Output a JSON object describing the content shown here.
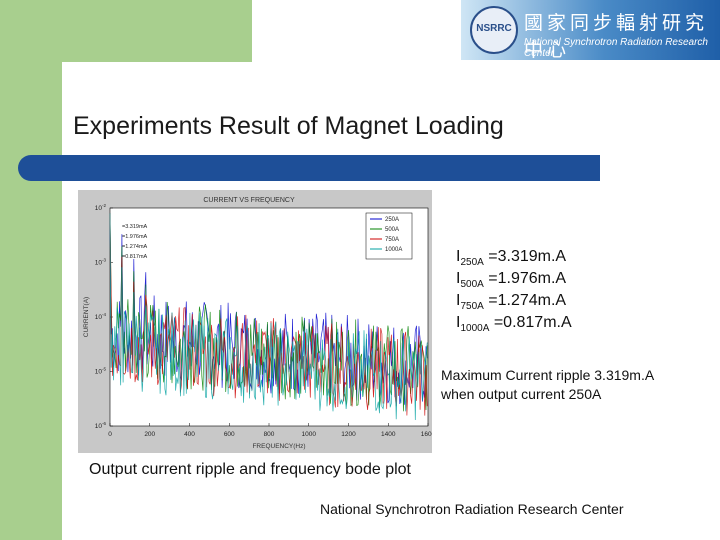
{
  "header": {
    "logo_seal_text": "NSRRC",
    "logo_chinese": "國家同步輻射研究中心",
    "logo_english": "National Synchrotron Radiation Research Center"
  },
  "slide": {
    "title": "Experiments Result of Magnet Loading",
    "ripple_values": [
      {
        "label": "I",
        "sub": "250A",
        "value": " =3.319m.A"
      },
      {
        "label": "I",
        "sub": "500A",
        "value": " =1.976m.A"
      },
      {
        "label": "I",
        "sub": "750A",
        "value": " =1.274m.A"
      },
      {
        "label": "I",
        "sub": "1000A",
        "value": " =0.817m.A"
      }
    ],
    "max_ripple_line1": "Maximum Current ripple 3.319m.A",
    "max_ripple_line2": "when output current 250A",
    "caption": "Output current ripple and frequency bode plot",
    "footer": "National Synchrotron Radiation Research Center"
  },
  "colors": {
    "green": "#a8cf8e",
    "title_bar": "#1e4f98",
    "series_250A": "#0000cc",
    "series_500A": "#008000",
    "series_750A": "#cc0000",
    "series_1000A": "#00a0a0"
  },
  "chart_data": {
    "type": "line",
    "title": "CURRENT VS FREQUENCY",
    "xlabel": "FREQUENCY(Hz)",
    "ylabel": "CURRENT(A)",
    "xlim": [
      0,
      1600
    ],
    "ylim_exponent": [
      -6,
      -2
    ],
    "yscale": "log",
    "x_ticks": [
      0,
      200,
      400,
      600,
      800,
      1000,
      1200,
      1400,
      1600
    ],
    "y_ticks": [
      "10-6",
      "10-5",
      "10-4",
      "10-3",
      "10-2"
    ],
    "legend_position": "top-right",
    "annotations": [
      "=3.319mA",
      "=1.976mA",
      "=1.274mA",
      "=0.817mA"
    ],
    "series": [
      {
        "name": "250A",
        "color": "#0000cc",
        "peak": 0.003319
      },
      {
        "name": "500A",
        "color": "#008000",
        "peak": 0.001976
      },
      {
        "name": "750A",
        "color": "#cc0000",
        "peak": 0.001274
      },
      {
        "name": "1000A",
        "color": "#00a0a0",
        "peak": 0.000817
      }
    ]
  }
}
